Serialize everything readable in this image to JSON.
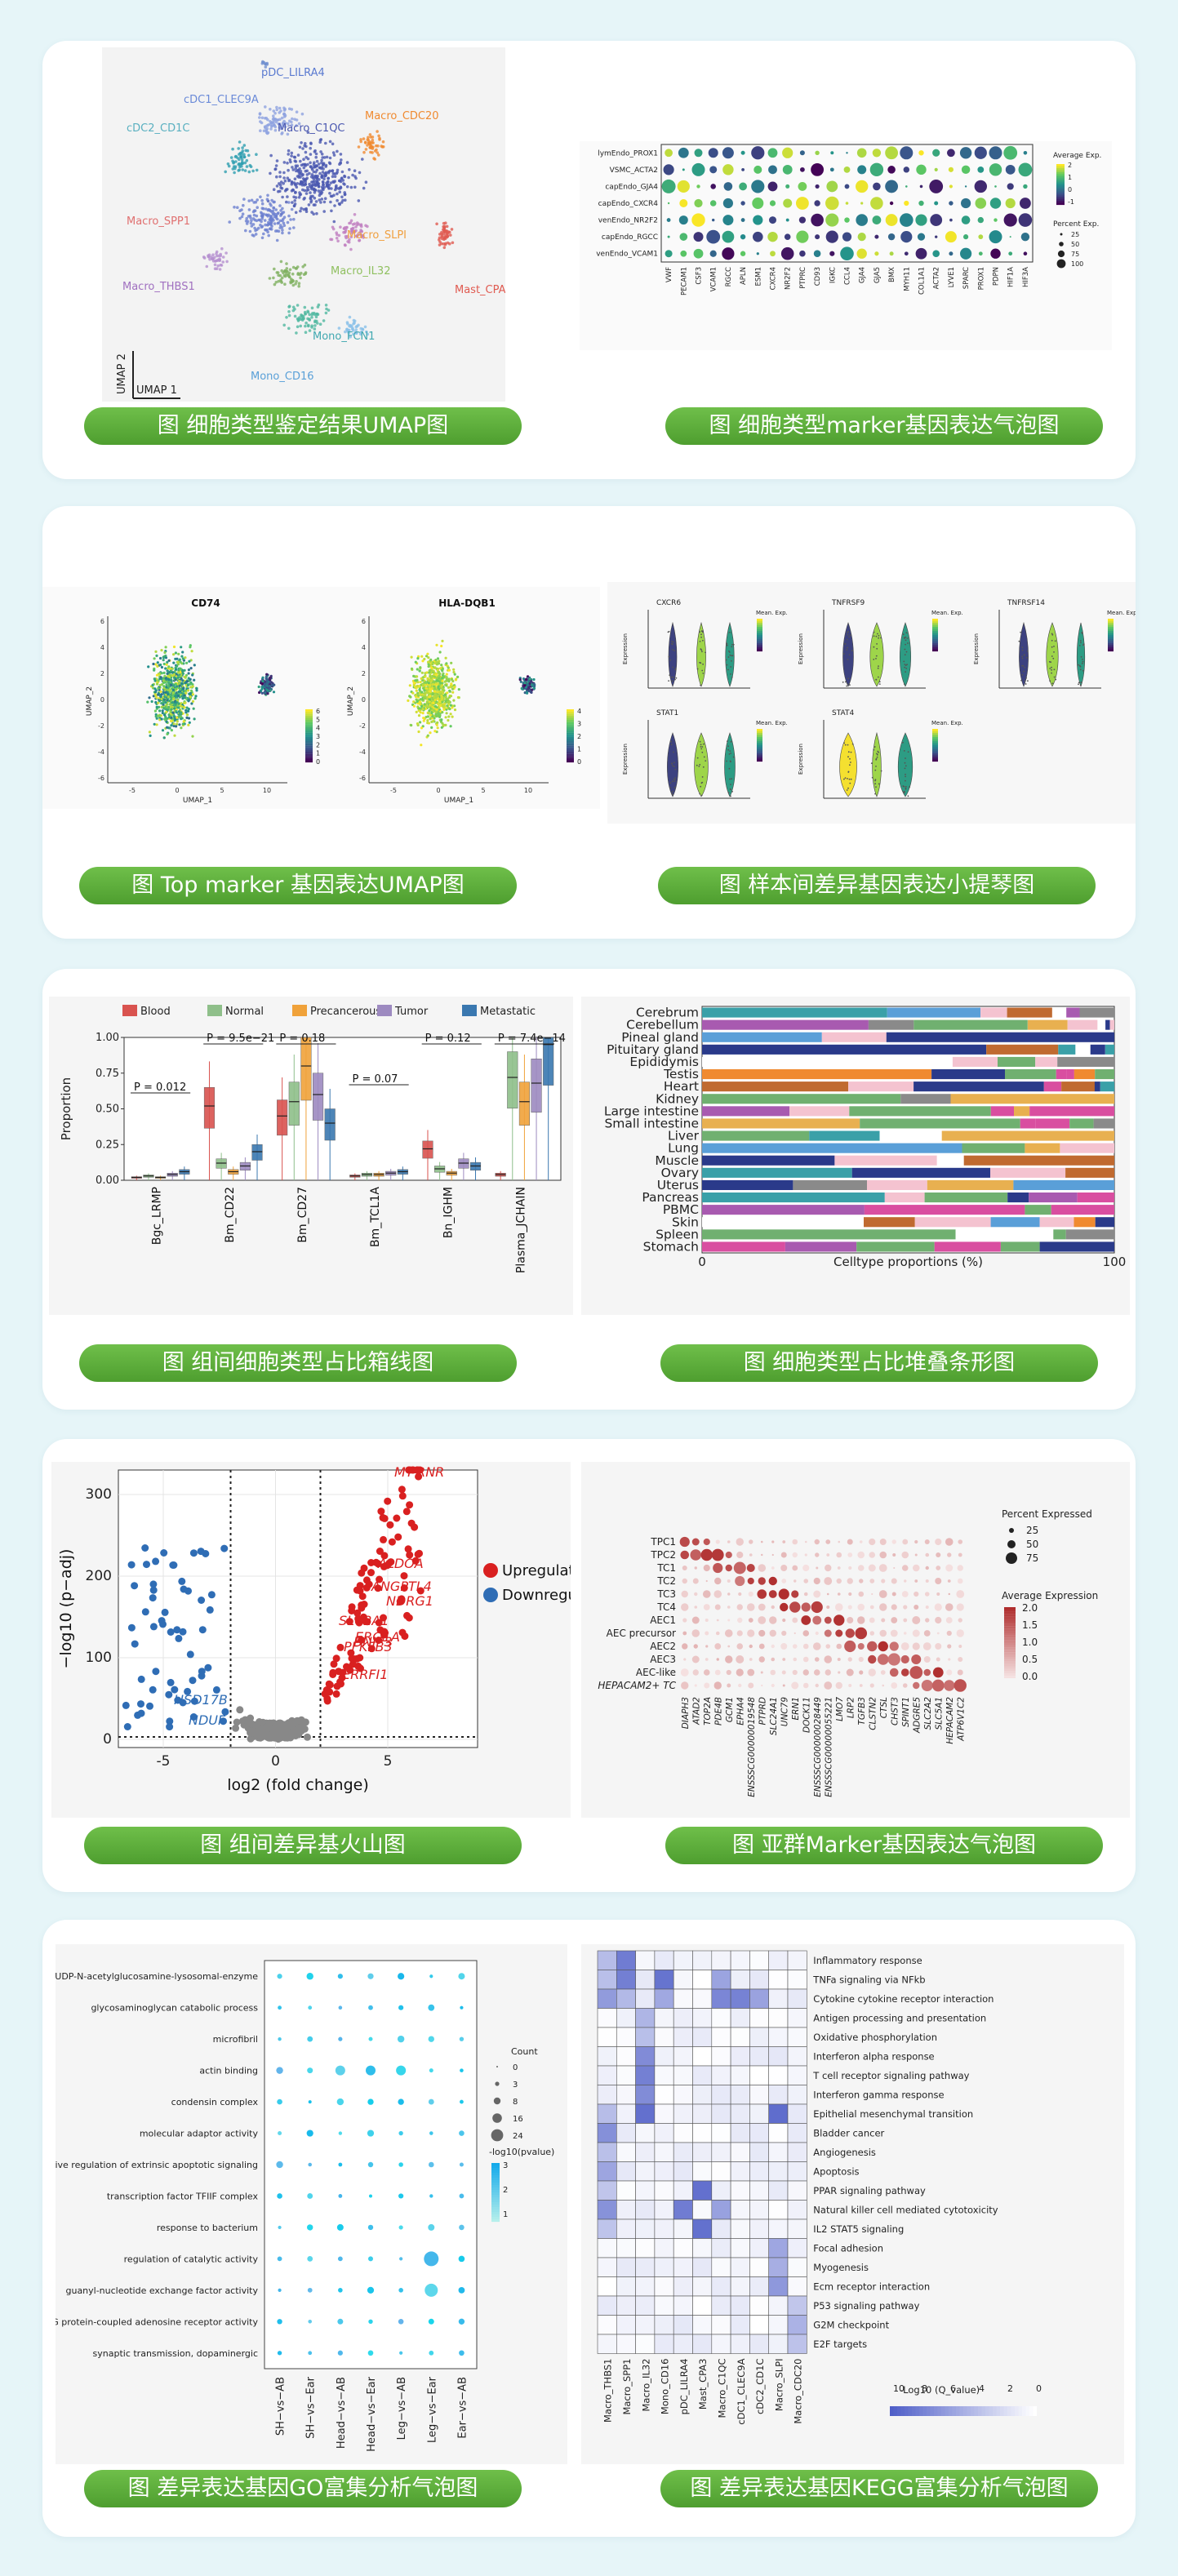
{
  "captions": {
    "c1": "图 细胞类型鉴定结果UMAP图",
    "c2": "图 细胞类型marker基因表达气泡图",
    "c3": "图 Top marker 基因表达UMAP图",
    "c4": "图 样本间差异基因表达小提琴图",
    "c5": "图 组间细胞类型占比箱线图",
    "c6": "图 细胞类型占比堆叠条形图",
    "c7": "图 组间差异基火山图",
    "c8": "图 亚群Marker基因表达气泡图",
    "c9": "图 差异表达基因GO富集分析气泡图",
    "c10": "图 差异表达基因KEGG富集分析气泡图"
  },
  "umap1": {
    "clusters": [
      "pDC_LILRA4",
      "cDC1_CLEC9A",
      "cDC2_CD1C",
      "Macro_C1QC",
      "Macro_CDC20",
      "Macro_SPP1",
      "Macro_SLPI",
      "Macro_IL32",
      "Macro_THBS1",
      "Mast_CPA3",
      "Mono_FCN1",
      "Mono_CD16"
    ],
    "axis_x": "UMAP 1",
    "axis_y": "UMAP 2"
  },
  "bubble1": {
    "rows": [
      "lymEndo_PROX1",
      "VSMC_ACTA2",
      "capEndo_GJA4",
      "capEndo_CXCR4",
      "venEndo_NR2F2",
      "capEndo_RGCC",
      "venEndo_VCAM1"
    ],
    "cols": [
      "VWF",
      "PECAM1",
      "CSF3",
      "VCAM1",
      "RGCC",
      "APLN",
      "ESM1",
      "CXCR4",
      "NR2F2",
      "PTPRC",
      "CD93",
      "IGKC",
      "CCL4",
      "GJA4",
      "GJA5",
      "BMX",
      "MYH11",
      "COL1A1",
      "ACTA2",
      "LYVE1",
      "SPARC",
      "PROX1",
      "PDPN",
      "HIF1A",
      "HIF3A"
    ],
    "legend_exp": "Average Exp.",
    "legend_pct": "Percent Exp.",
    "exp_ticks": [
      "2",
      "1",
      "0",
      "-1"
    ],
    "pct_ticks": [
      "25",
      "50",
      "75",
      "100"
    ]
  },
  "umap2": {
    "left_title": "CD74",
    "right_title": "HLA-DQB1",
    "x_label": "UMAP_1",
    "y_label": "UMAP_2",
    "x_ticks": [
      "-5",
      "0",
      "5",
      "10"
    ],
    "y_ticks": [
      "6",
      "4",
      "2",
      "0",
      "-2",
      "-4",
      "-6"
    ],
    "left_scale": [
      "6",
      "5",
      "4",
      "3",
      "2",
      "1",
      "0"
    ],
    "right_scale": [
      "4",
      "3",
      "2",
      "1",
      "0"
    ]
  },
  "violin": {
    "genes": [
      "CXCR6",
      "TNFRSF9",
      "TNFRSF14",
      "STAT1",
      "STAT4"
    ],
    "y_label": "Expression",
    "legend": "Mean. Exp."
  },
  "box": {
    "legend": [
      "Blood",
      "Normal",
      "Precancerous",
      "Tumor",
      "Metastatic"
    ],
    "colors": [
      "#d9534f",
      "#8fbf8a",
      "#f0a23a",
      "#9d8ac0",
      "#3a78b0"
    ],
    "categories": [
      "Bgc_LRMP",
      "Bm_CD22",
      "Bm_CD27",
      "Bm_TCL1A",
      "Bn_IGHM",
      "Plasma_JCHAIN"
    ],
    "medians": [
      [
        0.02,
        0.03,
        0.02,
        0.04,
        0.06
      ],
      [
        0.52,
        0.12,
        0.06,
        0.1,
        0.2
      ],
      [
        0.45,
        0.55,
        0.8,
        0.6,
        0.4
      ],
      [
        0.03,
        0.04,
        0.04,
        0.05,
        0.06
      ],
      [
        0.22,
        0.08,
        0.05,
        0.12,
        0.1
      ],
      [
        0.04,
        0.72,
        0.55,
        0.68,
        0.95
      ]
    ],
    "pvals": [
      "P = 0.012",
      "P = 9.5e−21",
      "P = 0.18",
      "P = 0.07",
      "P = 0.12",
      "P = 7.4e−14"
    ],
    "y_label": "Proportion",
    "y_ticks": [
      "1.00",
      "0.75",
      "0.50",
      "0.25",
      "0.00"
    ]
  },
  "stacked": {
    "tissues": [
      "Cerebrum",
      "Cerebellum",
      "Pineal gland",
      "Pituitary gland",
      "Epididymis",
      "Testis",
      "Heart",
      "Kidney",
      "Large intestine",
      "Small intestine",
      "Liver",
      "Lung",
      "Muscle",
      "Ovary",
      "Uterus",
      "Pancreas",
      "PBMC",
      "Skin",
      "Spleen",
      "Stomach"
    ],
    "x_label": "Celltype proportions (%)",
    "x_ticks": [
      "0",
      "100"
    ]
  },
  "volcano": {
    "legend": [
      "Upregulated",
      "Downregulated"
    ],
    "colors": {
      "up": "#d92020",
      "down": "#2f6db5",
      "ns": "#888888"
    },
    "up_genes": [
      "MT-RNR",
      "ALDOA",
      "ANGPTL4",
      "NDRG1",
      "SLC2A1",
      "ERO1A",
      "BNIP3",
      "PFKFB3",
      "VEGFA",
      "P4HA1",
      "ERRFI1"
    ],
    "down_genes": [
      "HSD17B",
      "NDUF"
    ],
    "x_label": "log2 (fold change)",
    "y_label": "−log10 (p−adj)",
    "x_ticks": [
      "-5",
      "0",
      "5"
    ],
    "y_ticks": [
      "0",
      "100",
      "200",
      "300"
    ]
  },
  "bubble2": {
    "rows": [
      "TPC1",
      "TPC2",
      "TC1",
      "TC2",
      "TC3",
      "TC4",
      "AEC1",
      "AEC precursor",
      "AEC2",
      "AEC3",
      "AEC-like",
      "HEPACAM2+ TC"
    ],
    "cols": [
      "DIAPH3",
      "ATAD2",
      "TOP2A",
      "PDE4B",
      "GCM1",
      "EPHA4",
      "ENSSSCG00000019548",
      "PTPRD",
      "SLC24A1",
      "UNC79",
      "ERN1",
      "DOCK11",
      "ENSSSCG00000028449",
      "ENSSSCG00000055221",
      "LMO7",
      "LRP2",
      "TGFB3",
      "CLSTN2",
      "CTSL",
      "CHST3",
      "SPINT1",
      "ADGRE5",
      "SLC2A2",
      "SLC5A1",
      "HEPACAM2",
      "ATP6V1C2"
    ],
    "legend_pct": "Percent Expressed",
    "pct_ticks": [
      "25",
      "50",
      "75"
    ],
    "legend_avg": "Average Expression",
    "avg_ticks": [
      "2.0",
      "1.5",
      "1.0",
      "0.5",
      "0.0"
    ]
  },
  "go": {
    "terms": [
      "UDP-N-acetylglucosamine-lysosomal-enzyme",
      "glycosaminoglycan catabolic process",
      "microfibril",
      "actin binding",
      "condensin complex",
      "molecular adaptor activity",
      "negative regulation of extrinsic apoptotic signaling",
      "transcription factor TFIIF complex",
      "response to bacterium",
      "regulation of catalytic activity",
      "guanyl-nucleotide exchange factor activity",
      "G protein-coupled adenosine receptor activity",
      "synaptic transmission, dopaminergic"
    ],
    "groups": [
      "SH−vs−AB",
      "SH−vs−Ear",
      "Head−vs−AB",
      "Head−vs−Ear",
      "Leg−vs−AB",
      "Leg−vs−Ear",
      "Ear−vs−AB"
    ],
    "legend_count": "Count",
    "count_ticks": [
      "0",
      "3",
      "8",
      "16",
      "24"
    ],
    "legend_p": "-log10(pvalue)",
    "p_ticks": [
      "3",
      "2",
      "1"
    ]
  },
  "kegg": {
    "pathways": [
      "Inflammatory response",
      "TNFa signaling via NFkb",
      "Cytokine cytokine receptor interaction",
      "Antigen processing and presentation",
      "Oxidative phosphorylation",
      "Interferon alpha response",
      "T cell receptor signaling pathway",
      "Interferon gamma response",
      "Epithelial mesenchymal transition",
      "Bladder cancer",
      "Angiogenesis",
      "Apoptosis",
      "PPAR signaling pathway",
      "Natural killer cell mediated cytotoxicity",
      "IL2 STAT5 signaling",
      "Focal adhesion",
      "Myogenesis",
      "Ecm receptor interaction",
      "P53 signaling pathway",
      "G2M checkpoint",
      "E2F targets"
    ],
    "groups": [
      "Macro_THBS1",
      "Macro_SPP1",
      "Macro_IL32",
      "Mono_CD16",
      "pDC_LILRA4",
      "Mast_CPA3",
      "Macro_C1QC",
      "cDC1_CLEC9A",
      "cDC2_CD1C",
      "Macro_SLPI",
      "Macro_CDC20"
    ],
    "legend": "-Log10 (Q_value)",
    "legend_ticks": [
      "10",
      "8",
      "6",
      "4",
      "2",
      "0"
    ]
  }
}
